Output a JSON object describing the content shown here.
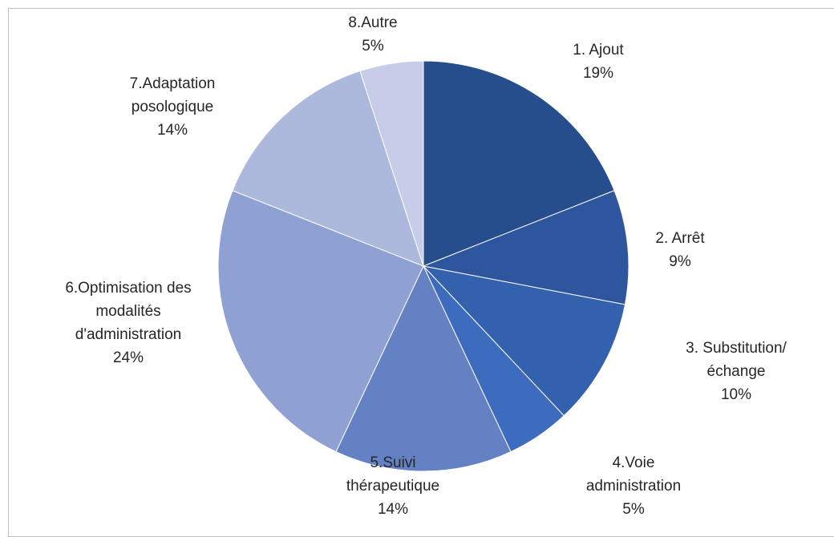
{
  "chart_data": {
    "type": "pie",
    "categories": [
      "1. Ajout",
      "2. Arrêt",
      "3. Substitution/échange",
      "4.Voie administration",
      "5.Suivi thérapeutique",
      "6.Optimisation des modalités d'administration",
      "7.Adaptation posologique",
      "8.Autre"
    ],
    "values": [
      19,
      9,
      10,
      5,
      14,
      24,
      14,
      5
    ],
    "value_labels": [
      "19%",
      "9%",
      "10%",
      "5%",
      "14%",
      "24%",
      "14%",
      "5%"
    ],
    "colors": [
      "#264d8c",
      "#2e569e",
      "#3461ad",
      "#3d6bbd",
      "#6381c3",
      "#8fa1d3",
      "#adb8dd",
      "#c7cde8"
    ]
  }
}
